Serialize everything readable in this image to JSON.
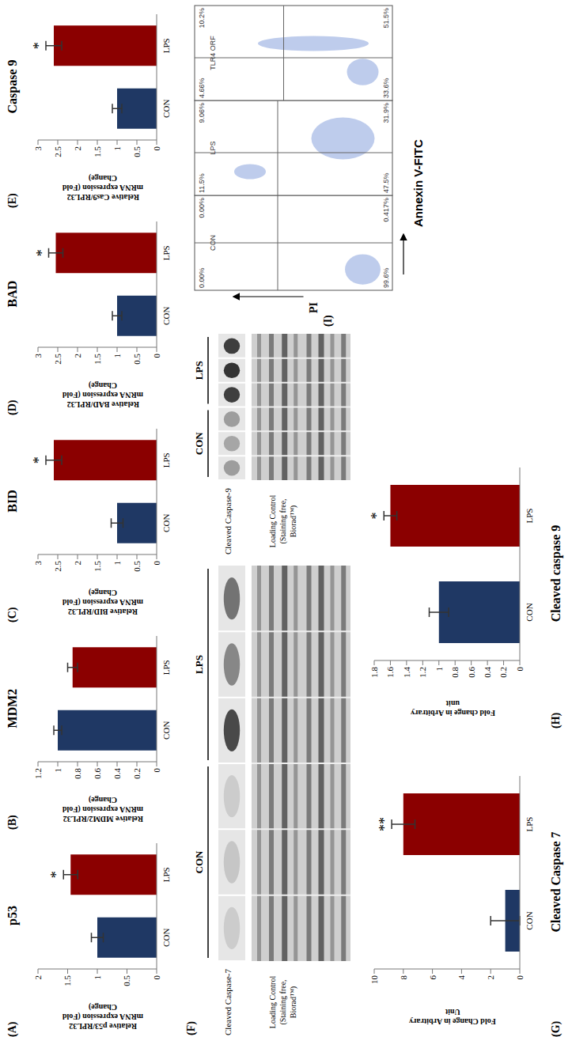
{
  "chart_data": [
    {
      "type": "bar",
      "panel": "(A)",
      "title": "p53",
      "y_label": [
        "Relative p53/RPL32",
        "mRNA expression (Fold",
        "Change)"
      ],
      "categories": [
        "CON",
        "LPS"
      ],
      "values": [
        1,
        1.45
      ],
      "errors": [
        0.1,
        0.12
      ],
      "significance": [
        null,
        "*"
      ],
      "colors": [
        "#1f3864",
        "#8b0000"
      ],
      "ylim": [
        0,
        2
      ],
      "yticks": [
        0,
        0.5,
        1,
        1.5,
        2
      ]
    },
    {
      "type": "bar",
      "panel": "(B)",
      "title": "MDM2",
      "y_label": [
        "Relative MDM2/RPL32",
        "mRNA expression (Fold",
        "Change)"
      ],
      "categories": [
        "CON",
        "LPS"
      ],
      "values": [
        1,
        0.85
      ],
      "errors": [
        0.04,
        0.05
      ],
      "significance": [
        null,
        null
      ],
      "colors": [
        "#1f3864",
        "#8b0000"
      ],
      "ylim": [
        0,
        1.2
      ],
      "yticks": [
        0,
        0.2,
        0.4,
        0.6,
        0.8,
        1,
        1.2
      ]
    },
    {
      "type": "bar",
      "panel": "(C)",
      "title": "BID",
      "y_label": [
        "Relative BID/RPL32",
        "mRNA expression (Fold",
        "Change)"
      ],
      "categories": [
        "CON",
        "LPS"
      ],
      "values": [
        1,
        2.6
      ],
      "errors": [
        0.15,
        0.2
      ],
      "significance": [
        null,
        "*"
      ],
      "colors": [
        "#1f3864",
        "#8b0000"
      ],
      "ylim": [
        0,
        3
      ],
      "yticks": [
        0,
        0.5,
        1,
        1.5,
        2,
        2.5,
        3
      ]
    },
    {
      "type": "bar",
      "panel": "(D)",
      "title": "BAD",
      "y_label": [
        "Relative BAD/RPL32",
        "mRNA expression (Fold",
        "Change)"
      ],
      "categories": [
        "CON",
        "LPS"
      ],
      "values": [
        1,
        2.55
      ],
      "errors": [
        0.12,
        0.18
      ],
      "significance": [
        null,
        "*"
      ],
      "colors": [
        "#1f3864",
        "#8b0000"
      ],
      "ylim": [
        0,
        3
      ],
      "yticks": [
        0,
        0.5,
        1,
        1.5,
        2,
        2.5,
        3
      ]
    },
    {
      "type": "bar",
      "panel": "(E)",
      "title": "Caspase 9",
      "y_label": [
        "Relative Cas9/RPL32",
        "mRNA expression (Fold",
        "Change)"
      ],
      "categories": [
        "CON",
        "LPS"
      ],
      "values": [
        1,
        2.6
      ],
      "errors": [
        0.12,
        0.2
      ],
      "significance": [
        null,
        "*"
      ],
      "colors": [
        "#1f3864",
        "#8b0000"
      ],
      "ylim": [
        0,
        3
      ],
      "yticks": [
        0,
        0.5,
        1,
        1.5,
        2,
        2.5,
        3
      ]
    },
    {
      "type": "blot",
      "panel": "(F)",
      "band_label": "Cleaved Caspase-7",
      "loading_label": [
        "Loading Control",
        "(Staining free,",
        "Biorad™)"
      ],
      "groups": [
        "CON",
        "LPS"
      ]
    },
    {
      "type": "blot",
      "band_label": "Cleaved Caspase-9",
      "loading_label": [
        "Loading Control",
        "(Staining free,",
        "Biorad™)"
      ],
      "groups": [
        "CON",
        "LPS"
      ]
    },
    {
      "type": "bar",
      "panel": "(G)",
      "title": "Cleaved Caspase 7",
      "y_label": [
        "Fold Change in Arbitrary",
        "Unit"
      ],
      "categories": [
        "CON",
        "LPS"
      ],
      "values": [
        1,
        8
      ],
      "errors": [
        1,
        0.8
      ],
      "significance": [
        null,
        "**"
      ],
      "colors": [
        "#1f3864",
        "#8b0000"
      ],
      "ylim": [
        0,
        10
      ],
      "yticks": [
        0,
        2,
        4,
        6,
        8,
        10
      ]
    },
    {
      "type": "bar",
      "panel": "(H)",
      "title": "Cleaved caspase 9",
      "y_label": [
        "Fold change in Arbitrary",
        "unit"
      ],
      "categories": [
        "CON",
        "LPS"
      ],
      "values": [
        1,
        1.6
      ],
      "errors": [
        0.12,
        0.08
      ],
      "significance": [
        null,
        "*"
      ],
      "colors": [
        "#1f3864",
        "#8b0000"
      ],
      "ylim": [
        0,
        1.8
      ],
      "yticks": [
        0,
        0.2,
        0.4,
        0.6,
        0.8,
        1,
        1.2,
        1.4,
        1.6,
        1.8
      ]
    },
    {
      "type": "flow_cytometry",
      "panel": "(I)",
      "x_label": "Annexin V-FITC",
      "y_label": "PI",
      "plots": [
        {
          "name": "CON",
          "quadrants": [
            {
              "value": 0,
              "label": "0.00%"
            },
            {
              "value": 0,
              "label": "0.00%"
            },
            {
              "value": 99.6,
              "label": "99.6%"
            },
            {
              "value": 0.417,
              "label": "0.417%"
            }
          ]
        },
        {
          "name": "LPS",
          "quadrants": [
            {
              "value": 11.5,
              "label": "11.5%"
            },
            {
              "value": 9.06,
              "label": "9.06%"
            },
            {
              "value": 47.5,
              "label": "47.5%"
            },
            {
              "value": 31.9,
              "label": "31.9%"
            }
          ]
        },
        {
          "name": "TLR4 ORF",
          "quadrants": [
            {
              "value": 4.66,
              "label": "4.66%"
            },
            {
              "value": 10.2,
              "label": "10.2%"
            },
            {
              "value": 33.6,
              "label": "33.6%"
            },
            {
              "value": 51.5,
              "label": "51.5%"
            }
          ]
        }
      ]
    }
  ]
}
